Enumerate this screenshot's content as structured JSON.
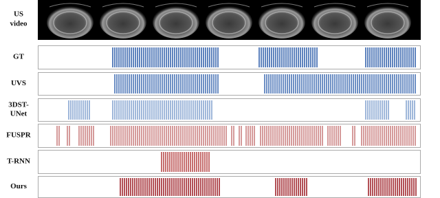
{
  "video_label": [
    "US",
    "video"
  ],
  "tracks": [
    {
      "label": [
        "GT"
      ]
    },
    {
      "label": [
        "UVS"
      ]
    },
    {
      "label": [
        "3DST-",
        "UNet"
      ]
    },
    {
      "label": [
        "FUSPR"
      ]
    },
    {
      "label": [
        "T-RNN"
      ]
    },
    {
      "label": [
        "Ours"
      ]
    }
  ]
}
